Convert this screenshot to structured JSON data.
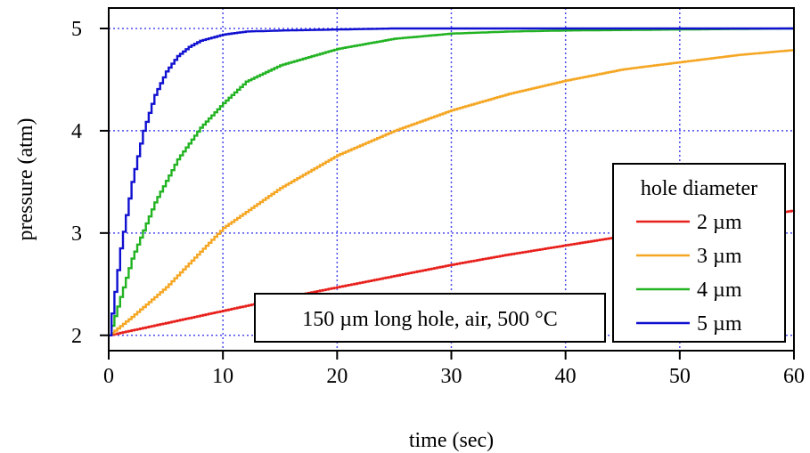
{
  "chart_data": {
    "type": "line",
    "xlabel": "time (sec)",
    "ylabel": "pressure (atm)",
    "xlim": [
      0,
      60
    ],
    "ylim": [
      1.85,
      5.2
    ],
    "xticks": [
      0,
      10,
      20,
      30,
      40,
      50,
      60
    ],
    "yticks": [
      2,
      3,
      4,
      5
    ],
    "grid": true,
    "grid_style": "dotted",
    "grid_color": "#4a4af0",
    "legend": {
      "title": "hole diameter",
      "placement": "right"
    },
    "annotation": "150 µm long hole, air, 500 °C",
    "series": [
      {
        "name": "2 µm",
        "color": "#e8201c",
        "x": [
          0,
          5,
          10,
          15,
          20,
          25,
          30,
          35,
          40,
          45,
          50,
          55,
          60
        ],
        "values": [
          2.0,
          2.12,
          2.24,
          2.36,
          2.47,
          2.58,
          2.69,
          2.79,
          2.88,
          2.97,
          3.06,
          3.14,
          3.22
        ]
      },
      {
        "name": "3 µm",
        "color": "#f5a623",
        "x": [
          0,
          2,
          5,
          10,
          15,
          20,
          25,
          30,
          35,
          40,
          45,
          50,
          55,
          60
        ],
        "values": [
          2.0,
          2.18,
          2.47,
          3.05,
          3.44,
          3.76,
          4.0,
          4.2,
          4.36,
          4.49,
          4.6,
          4.67,
          4.74,
          4.79
        ]
      },
      {
        "name": "4 µm",
        "color": "#22b322",
        "x": [
          0,
          2,
          4,
          6,
          8,
          10,
          12,
          15,
          20,
          25,
          30,
          35,
          40,
          50,
          60
        ],
        "values": [
          2.0,
          2.75,
          3.3,
          3.72,
          4.03,
          4.27,
          4.48,
          4.64,
          4.8,
          4.9,
          4.95,
          4.97,
          4.98,
          4.99,
          5.0
        ]
      },
      {
        "name": "5 µm",
        "color": "#1010d0",
        "x": [
          0,
          1,
          2,
          3,
          4,
          5,
          6,
          7,
          8,
          10,
          12,
          15,
          20,
          25,
          30,
          40,
          50,
          60
        ],
        "values": [
          2.0,
          2.85,
          3.5,
          4.0,
          4.35,
          4.58,
          4.73,
          4.82,
          4.88,
          4.94,
          4.97,
          4.98,
          4.99,
          5.0,
          5.0,
          5.0,
          5.0,
          5.0
        ]
      }
    ]
  }
}
